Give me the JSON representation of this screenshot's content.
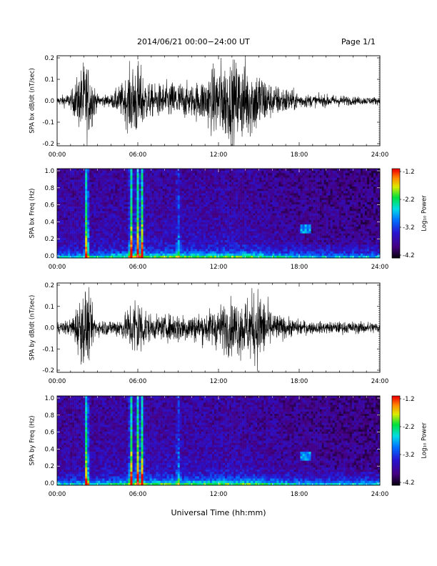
{
  "header": {
    "title": "2014/06/21  00:00−24:00 UT",
    "page": "Page 1/1"
  },
  "xaxis_label": "Universal Time (hh:mm)",
  "chart_data": [
    {
      "type": "line",
      "ylabel": "SPA bx dB/dt (nT/sec)",
      "xlim": [
        0,
        24
      ],
      "ylim": [
        -0.2,
        0.2
      ],
      "x_ticks": [
        "00:00",
        "06:00",
        "12:00",
        "18:00",
        "24:00"
      ],
      "y_ticks": [
        "0.2",
        "0.1",
        "0.0",
        "-0.1",
        "-0.2"
      ],
      "envelope": {
        "hours": [
          0,
          1,
          2,
          2.2,
          2.5,
          3,
          4,
          5,
          5.5,
          6,
          6.5,
          7,
          8,
          9,
          10,
          11,
          12,
          13,
          14,
          15,
          16,
          17,
          18,
          19,
          20,
          21,
          22,
          23,
          24
        ],
        "amplitude": [
          0.02,
          0.04,
          0.2,
          0.2,
          0.15,
          0.03,
          0.03,
          0.1,
          0.18,
          0.2,
          0.12,
          0.08,
          0.09,
          0.1,
          0.08,
          0.12,
          0.2,
          0.2,
          0.2,
          0.16,
          0.08,
          0.07,
          0.04,
          0.03,
          0.03,
          0.03,
          0.02,
          0.02,
          0.02
        ]
      }
    },
    {
      "type": "heatmap",
      "ylabel": "SPA bx Freq (Hz)",
      "xlim": [
        0,
        24
      ],
      "ylim": [
        0,
        1
      ],
      "x_ticks": [
        "00:00",
        "06:00",
        "12:00",
        "18:00",
        "24:00"
      ],
      "y_ticks": [
        "1.0",
        "0.8",
        "0.6",
        "0.4",
        "0.2",
        "0.0"
      ],
      "colorbar": {
        "label": "Log₁₀ Power",
        "range": [
          -4.2,
          -1.2
        ],
        "ticks": [
          "-1.2",
          "-2.2",
          "-3.2",
          "-4.2"
        ]
      },
      "bright_bands_hours": [
        2.2,
        5.5,
        6.0,
        6.3,
        9.0
      ],
      "weak_feature": {
        "hour": 18.5,
        "freq": 0.32
      }
    },
    {
      "type": "line",
      "ylabel": "SPA by dB/dt (nT/sec)",
      "xlim": [
        0,
        24
      ],
      "ylim": [
        -0.2,
        0.2
      ],
      "x_ticks": [
        "00:00",
        "06:00",
        "12:00",
        "18:00",
        "24:00"
      ],
      "y_ticks": [
        "0.2",
        "0.1",
        "0.0",
        "-0.1",
        "-0.2"
      ],
      "envelope": {
        "hours": [
          0,
          1,
          2,
          2.2,
          2.5,
          3,
          4,
          5,
          5.5,
          6,
          6.5,
          7,
          8,
          9,
          10,
          11,
          12,
          13,
          14,
          15,
          16,
          17,
          18,
          19,
          20,
          21,
          22,
          23,
          24
        ],
        "amplitude": [
          0.03,
          0.04,
          0.2,
          0.2,
          0.12,
          0.04,
          0.04,
          0.06,
          0.14,
          0.18,
          0.1,
          0.06,
          0.06,
          0.08,
          0.07,
          0.08,
          0.11,
          0.14,
          0.15,
          0.2,
          0.08,
          0.05,
          0.04,
          0.03,
          0.03,
          0.03,
          0.03,
          0.03,
          0.03
        ]
      }
    },
    {
      "type": "heatmap",
      "ylabel": "SPA by Freq (Hz)",
      "xlim": [
        0,
        24
      ],
      "ylim": [
        0,
        1
      ],
      "x_ticks": [
        "00:00",
        "06:00",
        "12:00",
        "18:00",
        "24:00"
      ],
      "y_ticks": [
        "1.0",
        "0.8",
        "0.6",
        "0.4",
        "0.2",
        "0.0"
      ],
      "colorbar": {
        "label": "Log₁₀ Power",
        "range": [
          -4.2,
          -1.2
        ],
        "ticks": [
          "-1.2",
          "-2.2",
          "-3.2",
          "-4.2"
        ]
      },
      "bright_bands_hours": [
        2.2,
        5.5,
        6.0,
        6.3,
        9.0
      ],
      "weak_feature": {
        "hour": 18.5,
        "freq": 0.32
      }
    }
  ]
}
